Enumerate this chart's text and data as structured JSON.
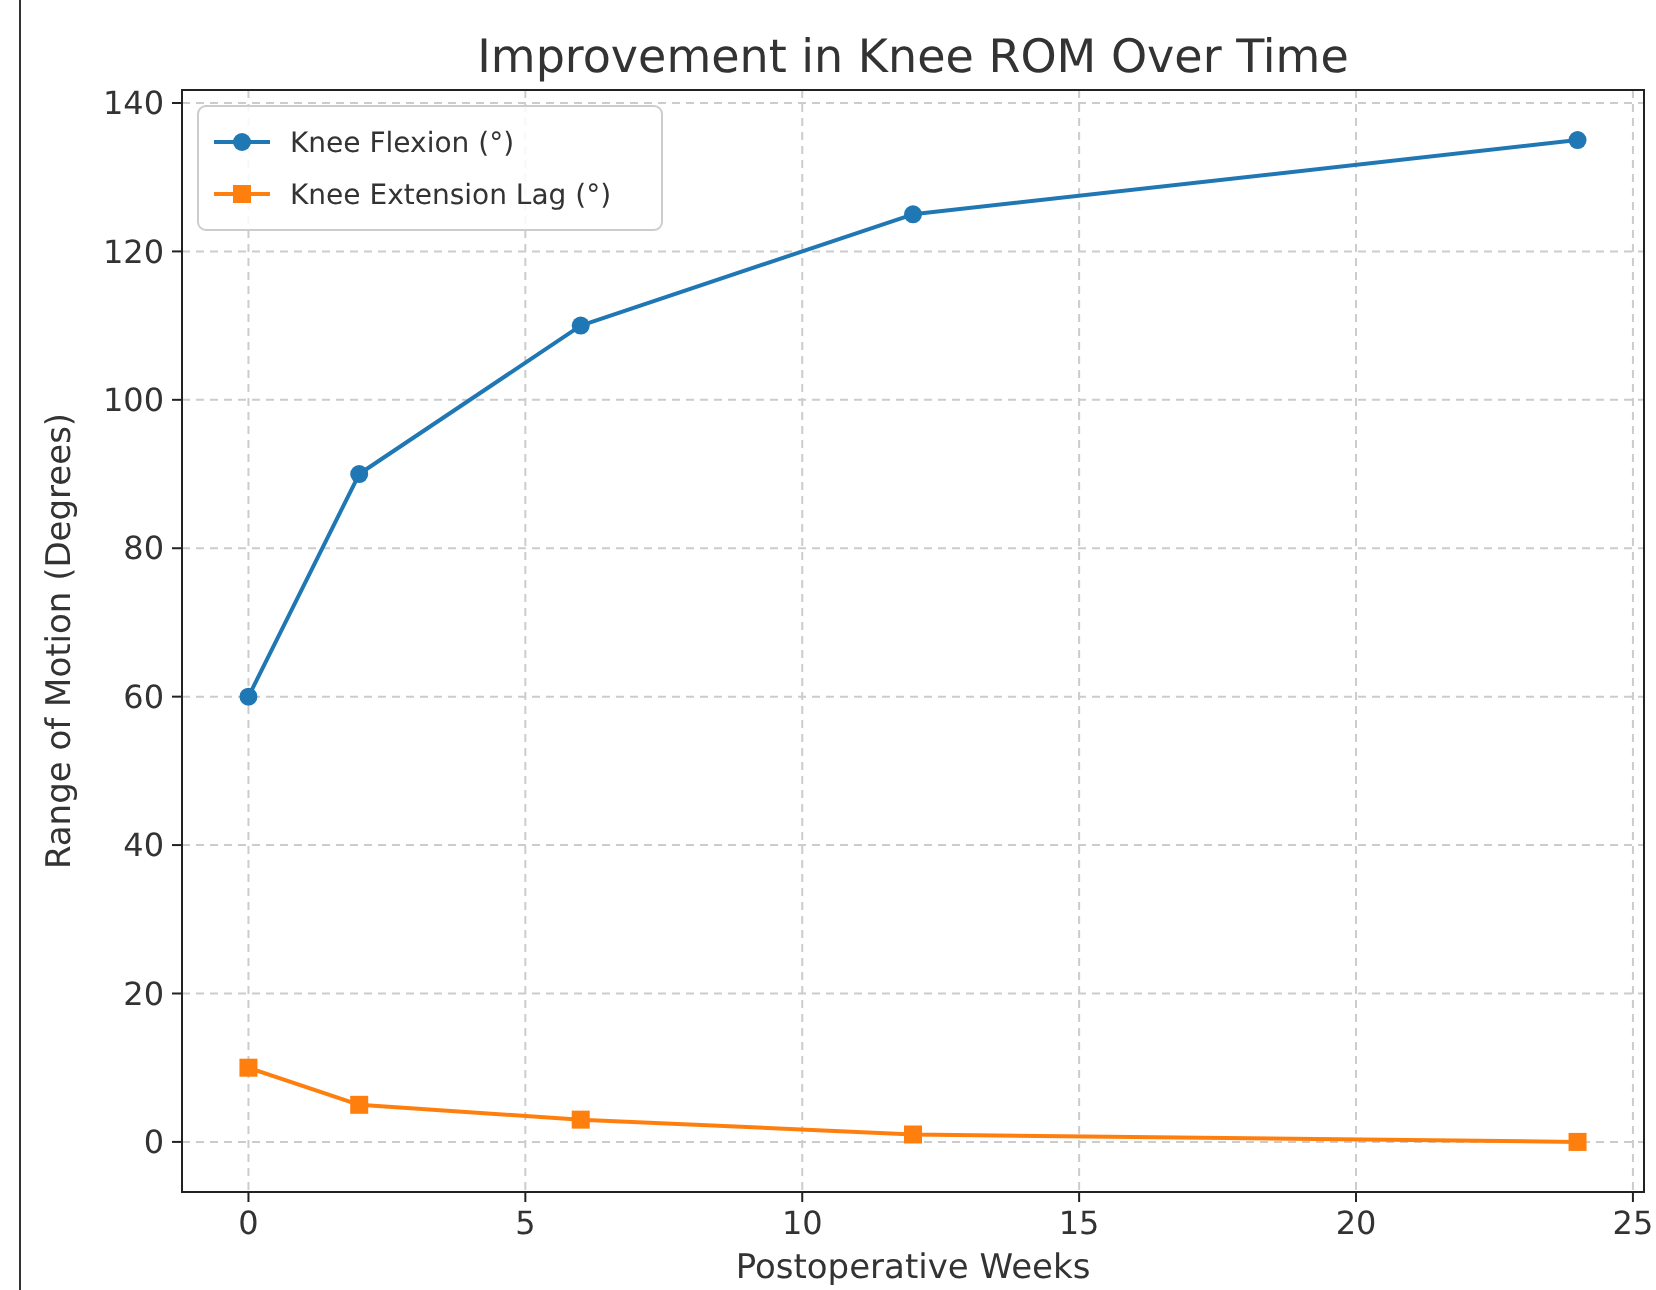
{
  "chart_data": {
    "type": "line",
    "title": "Improvement in Knee ROM Over Time",
    "xlabel": "Postoperative Weeks",
    "ylabel": "Range of Motion (Degrees)",
    "x": [
      0,
      2,
      6,
      12,
      24
    ],
    "series": [
      {
        "name": "Knee Flexion (°)",
        "color": "#1f77b4",
        "values": [
          60,
          90,
          110,
          125,
          135
        ],
        "marker": "circle"
      },
      {
        "name": "Knee Extension Lag (°)",
        "color": "#ff7f0e",
        "values": [
          10,
          5,
          3,
          1,
          0
        ],
        "marker": "square"
      }
    ],
    "xlim": [
      -1.2,
      25.2
    ],
    "xticks": [
      0,
      5,
      10,
      15,
      20,
      25
    ],
    "ylim": [
      -6.75,
      141.75
    ],
    "yticks": [
      0,
      20,
      40,
      60,
      80,
      100,
      120,
      140
    ],
    "grid": true,
    "legend": "top left",
    "line_style": "solid"
  }
}
